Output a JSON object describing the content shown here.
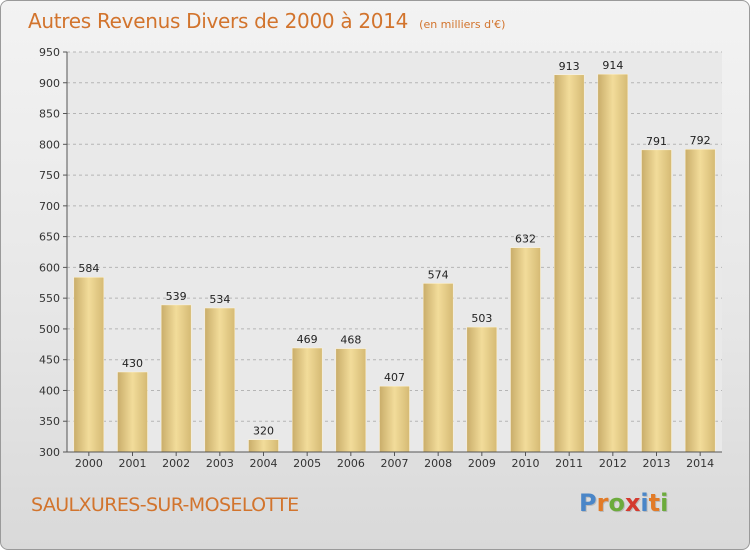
{
  "title": "Autres Revenus Divers de 2000 à 2014",
  "subtitle": "(en milliers d'€)",
  "commune": "SAULXURES-SUR-MOSELOTTE",
  "logo": {
    "letters": [
      "P",
      "r",
      "o",
      "x",
      "i",
      "t",
      "i"
    ],
    "colors": [
      "#4a86c8",
      "#e27b27",
      "#6cab3c",
      "#d43a2f",
      "#4a86c8",
      "#e27b27",
      "#6cab3c"
    ]
  },
  "chart_data": {
    "type": "bar",
    "title": "Autres Revenus Divers de 2000 à 2014",
    "subtitle": "(en milliers d'€)",
    "categories": [
      "2000",
      "2001",
      "2002",
      "2003",
      "2004",
      "2005",
      "2006",
      "2007",
      "2008",
      "2009",
      "2010",
      "2011",
      "2012",
      "2013",
      "2014"
    ],
    "values": [
      584,
      430,
      539,
      534,
      320,
      469,
      468,
      407,
      574,
      503,
      632,
      913,
      914,
      791,
      792
    ],
    "value_labels": [
      "584",
      "430",
      "539",
      "534",
      "320",
      "469",
      "468",
      "407",
      "574",
      "503",
      "632",
      "913",
      "914",
      "791",
      "792"
    ],
    "ylim": [
      300,
      950
    ],
    "yticks": [
      300,
      350,
      400,
      450,
      500,
      550,
      600,
      650,
      700,
      750,
      800,
      850,
      900,
      950
    ],
    "ytick_labels": [
      "300",
      "350",
      "400",
      "450",
      "500",
      "550",
      "600",
      "650",
      "700",
      "750",
      "800",
      "850",
      "900",
      "950"
    ],
    "grid": "horizontal dashed",
    "bar_color": "#e8cc85"
  }
}
